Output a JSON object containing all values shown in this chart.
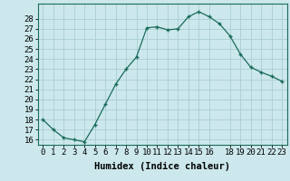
{
  "x": [
    0,
    1,
    2,
    3,
    4,
    5,
    6,
    7,
    8,
    9,
    10,
    11,
    12,
    13,
    14,
    15,
    16,
    17,
    18,
    19,
    20,
    21,
    22,
    23
  ],
  "y": [
    18,
    17,
    16.2,
    16,
    15.8,
    17.5,
    19.5,
    21.5,
    23,
    24.2,
    27.1,
    27.2,
    26.9,
    27.0,
    28.2,
    28.7,
    28.2,
    27.5,
    26.3,
    24.5,
    23.2,
    22.7,
    22.3,
    21.8
  ],
  "line_color": "#1a6b5a",
  "marker": "+",
  "marker_size": 3,
  "marker_lw": 1.0,
  "line_width": 0.9,
  "bg_color": "#cce8ec",
  "grid_color": "#aacdd4",
  "xlabel": "Humidex (Indice chaleur)",
  "ylim": [
    15.5,
    29.5
  ],
  "xlim": [
    -0.5,
    23.5
  ],
  "yticks": [
    16,
    17,
    18,
    19,
    20,
    21,
    22,
    23,
    24,
    25,
    26,
    27,
    28
  ],
  "xticks": [
    0,
    1,
    2,
    3,
    4,
    5,
    6,
    7,
    8,
    9,
    10,
    11,
    12,
    13,
    14,
    15,
    16,
    18,
    19,
    20,
    21,
    22,
    23
  ],
  "tick_label_fontsize": 6.5,
  "xlabel_fontsize": 7.5
}
